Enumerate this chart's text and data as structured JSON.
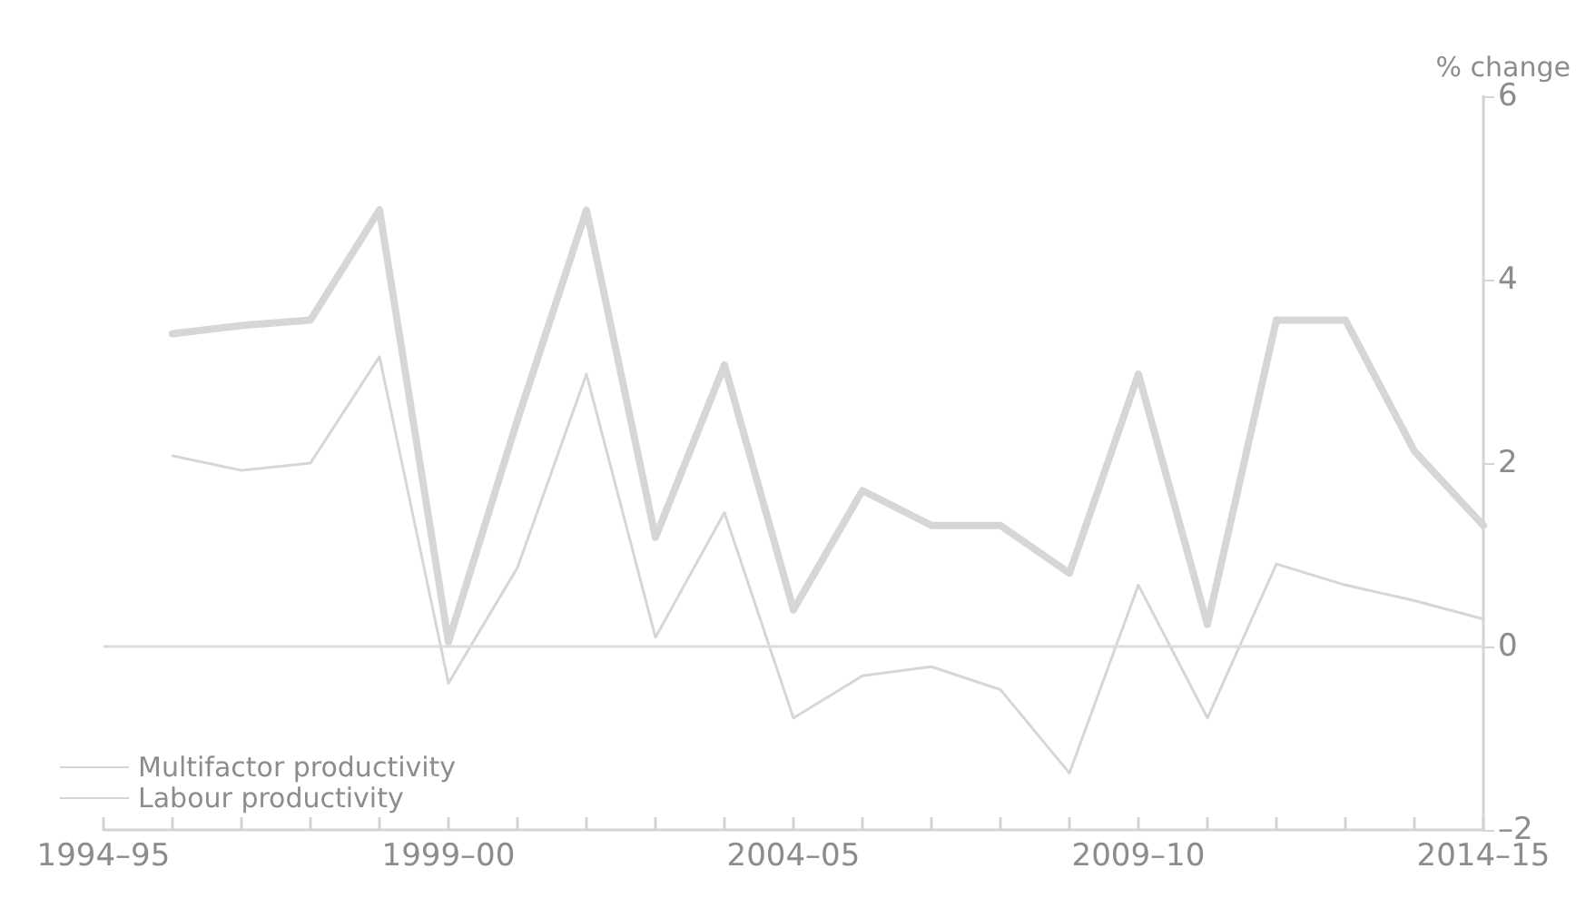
{
  "chart_data": {
    "type": "line",
    "ylabel": "% change",
    "categories": [
      "1994–95",
      null,
      null,
      null,
      null,
      "1999–00",
      null,
      null,
      null,
      null,
      "2004–05",
      null,
      null,
      null,
      null,
      "2009–10",
      null,
      null,
      null,
      null,
      "2014–15"
    ],
    "series": [
      {
        "name": "Multifactor productivity",
        "color": "#d6d6d6",
        "values": [
          null,
          2.08,
          1.92,
          2.0,
          3.16,
          -0.4,
          0.86,
          2.97,
          0.1,
          1.46,
          -0.78,
          -0.32,
          -0.22,
          -0.47,
          -1.38,
          0.67,
          -0.78,
          0.9,
          0.67,
          0.5,
          0.3
        ]
      },
      {
        "name": "Labour productivity",
        "color": "#d6d6d6",
        "values": [
          null,
          3.41,
          3.5,
          3.56,
          4.76,
          0.05,
          2.47,
          4.76,
          1.19,
          3.07,
          0.4,
          1.7,
          1.32,
          1.32,
          0.8,
          2.97,
          0.24,
          3.56,
          3.56,
          2.13,
          1.32
        ]
      }
    ],
    "ylim": [
      -2,
      6
    ],
    "yticks": [
      {
        "value": -2,
        "label": "–2"
      },
      0,
      2,
      4,
      6
    ],
    "ref_lines": [
      {
        "axis": "y",
        "value": 0,
        "color": "#dcdcdc"
      }
    ],
    "grid": false,
    "legend": "bottom left",
    "marker": "none",
    "line_style": "solid"
  }
}
